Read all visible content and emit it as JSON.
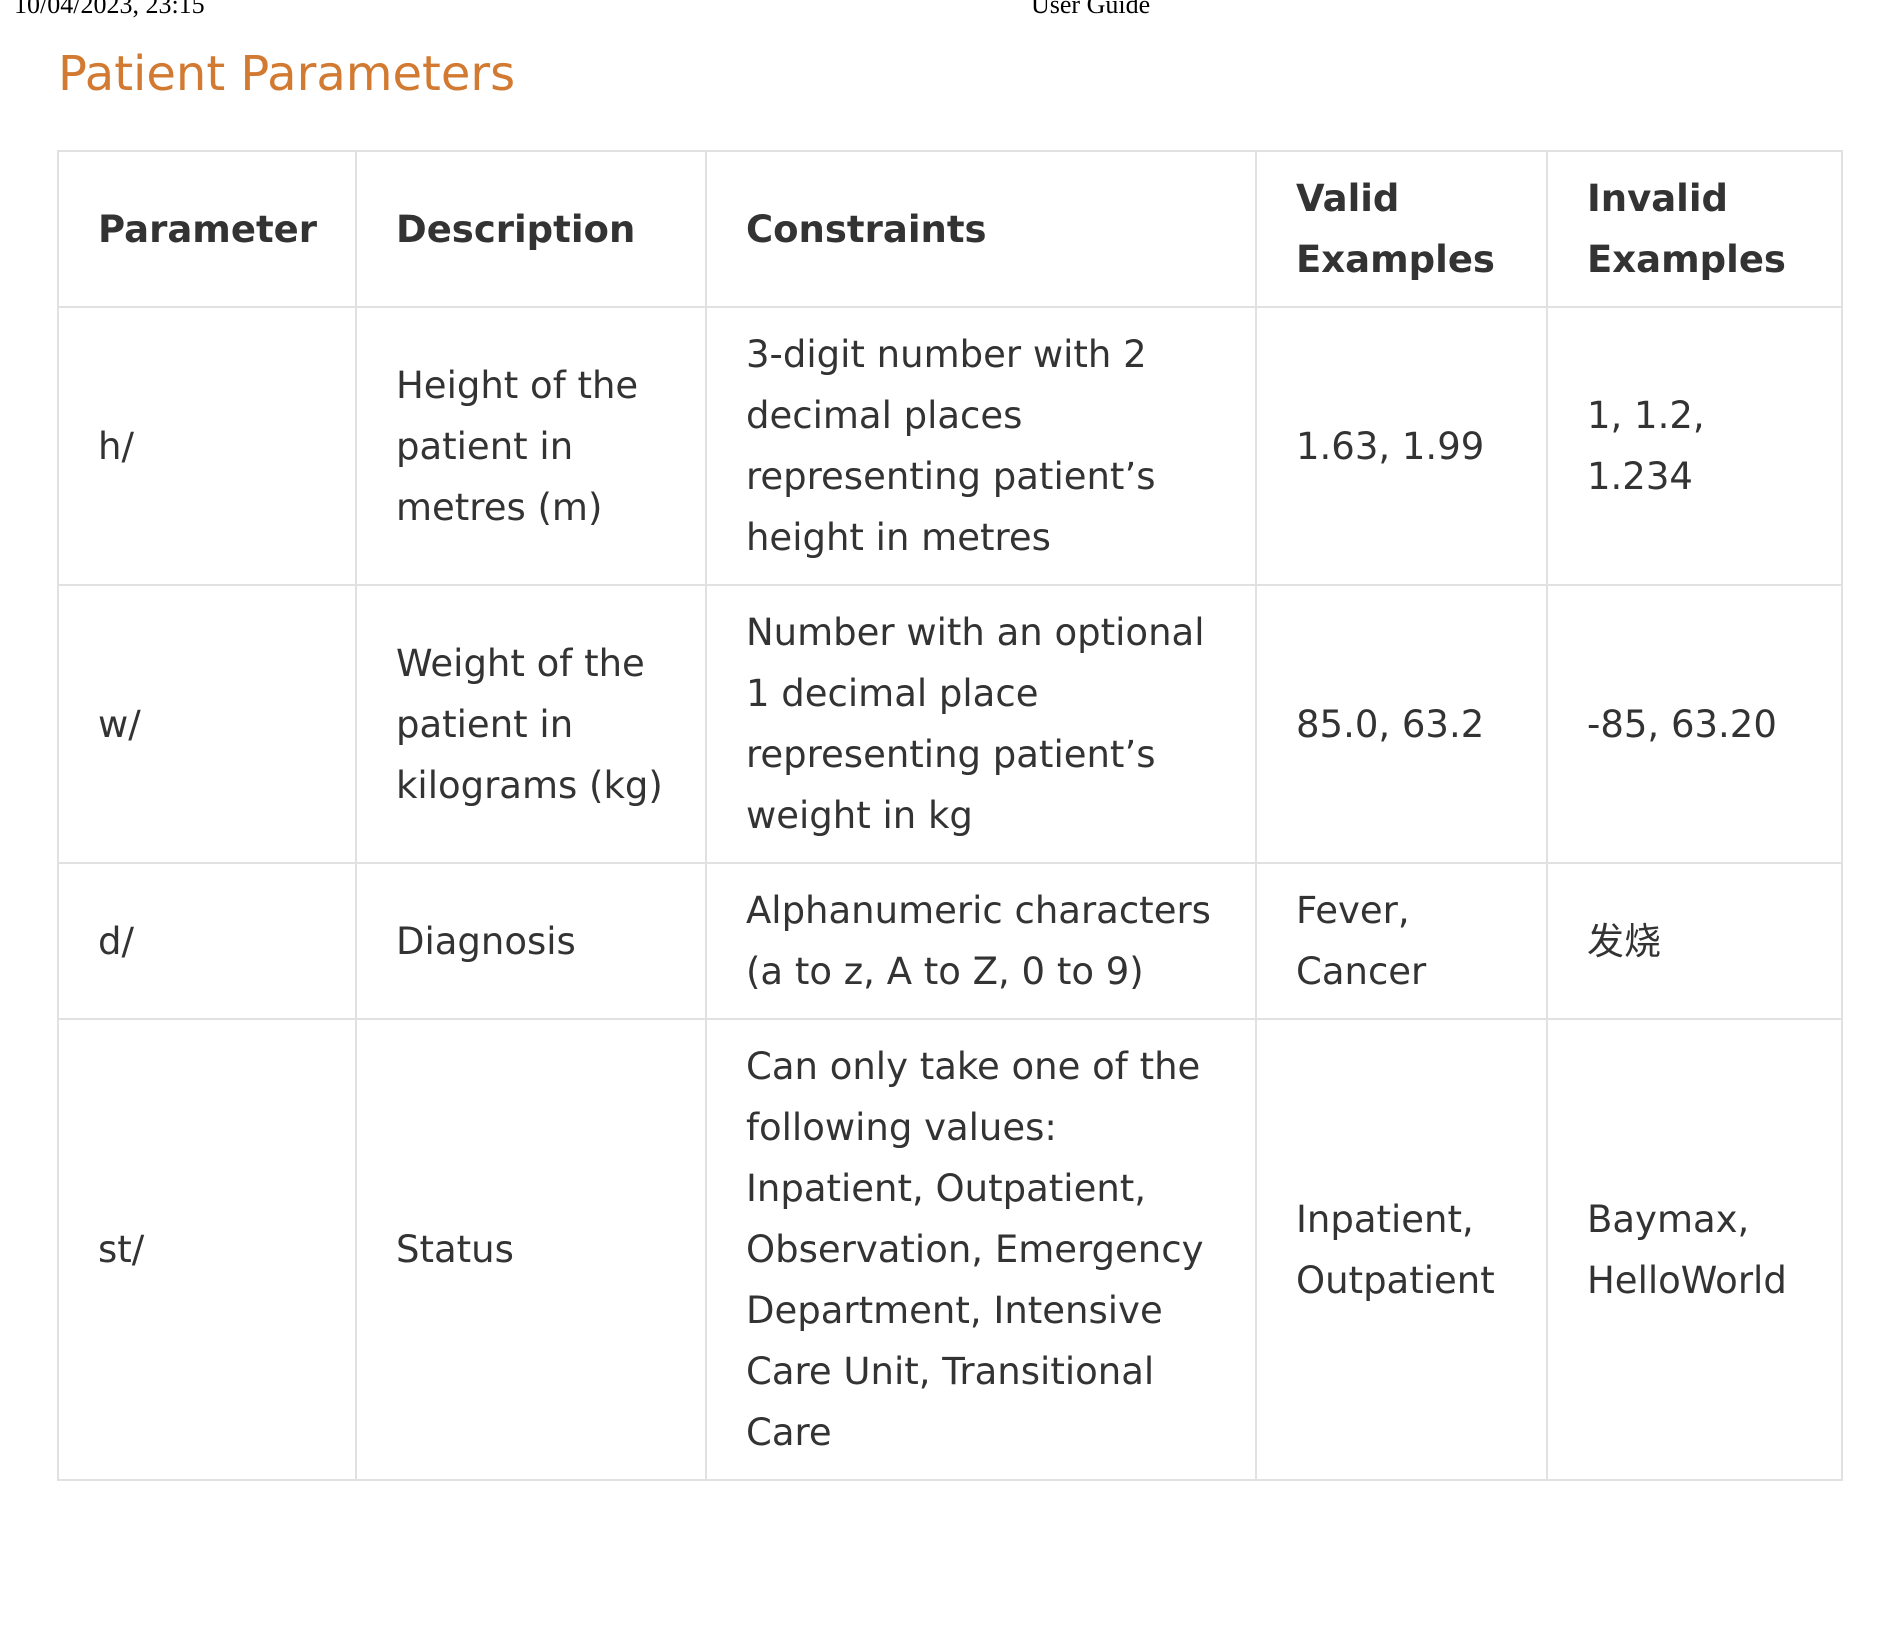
{
  "print_header": {
    "datetime": "10/04/2023, 23:15",
    "doc_title": "User Guide"
  },
  "section": {
    "title": "Patient Parameters"
  },
  "table": {
    "headers": {
      "parameter": "Parameter",
      "description": "Description",
      "constraints": "Constraints",
      "valid": "Valid Examples",
      "invalid": "Invalid Examples"
    },
    "rows": [
      {
        "parameter": "h/",
        "description": "Height of the patient in metres (m)",
        "constraints": "3-digit number with 2 decimal places representing patient’s height in metres",
        "valid": "1.63, 1.99",
        "invalid": "1, 1.2, 1.234"
      },
      {
        "parameter": "w/",
        "description": "Weight of the patient in kilograms (kg)",
        "constraints": "Number with an optional 1 decimal place representing patient’s weight in kg",
        "valid": "85.0, 63.2",
        "invalid": "-85, 63.20"
      },
      {
        "parameter": "d/",
        "description": "Diagnosis",
        "constraints": "Alphanumeric characters (a to z, A to Z, 0 to 9)",
        "valid": "Fever, Cancer",
        "invalid": "发烧"
      },
      {
        "parameter": "st/",
        "description": "Status",
        "constraints": "Can only take one of the following values: Inpatient, Outpatient, Observation, Emergency Department, Intensive Care Unit, Transitional Care",
        "valid": "Inpatient, Outpatient",
        "invalid": "Baymax, HelloWorld"
      }
    ]
  }
}
